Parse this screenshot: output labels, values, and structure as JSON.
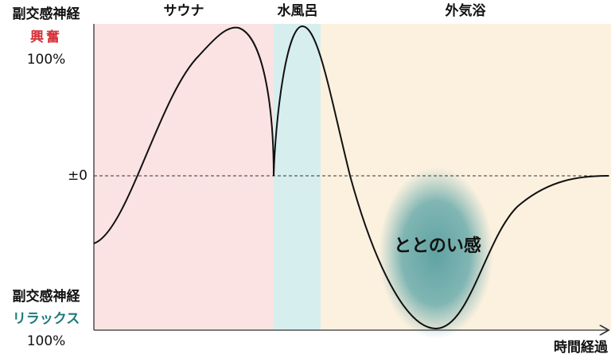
{
  "y_axis": {
    "top": {
      "label": "副交感神経",
      "state": "興奮",
      "percent": "100%"
    },
    "zero": "±0",
    "bottom": {
      "label": "副交感神経",
      "state": "リラックス",
      "percent": "100%"
    }
  },
  "phases": [
    "サウナ",
    "水風呂",
    "外気浴"
  ],
  "annotation": "ととのい感",
  "x_axis": {
    "label": "時間経過"
  }
}
